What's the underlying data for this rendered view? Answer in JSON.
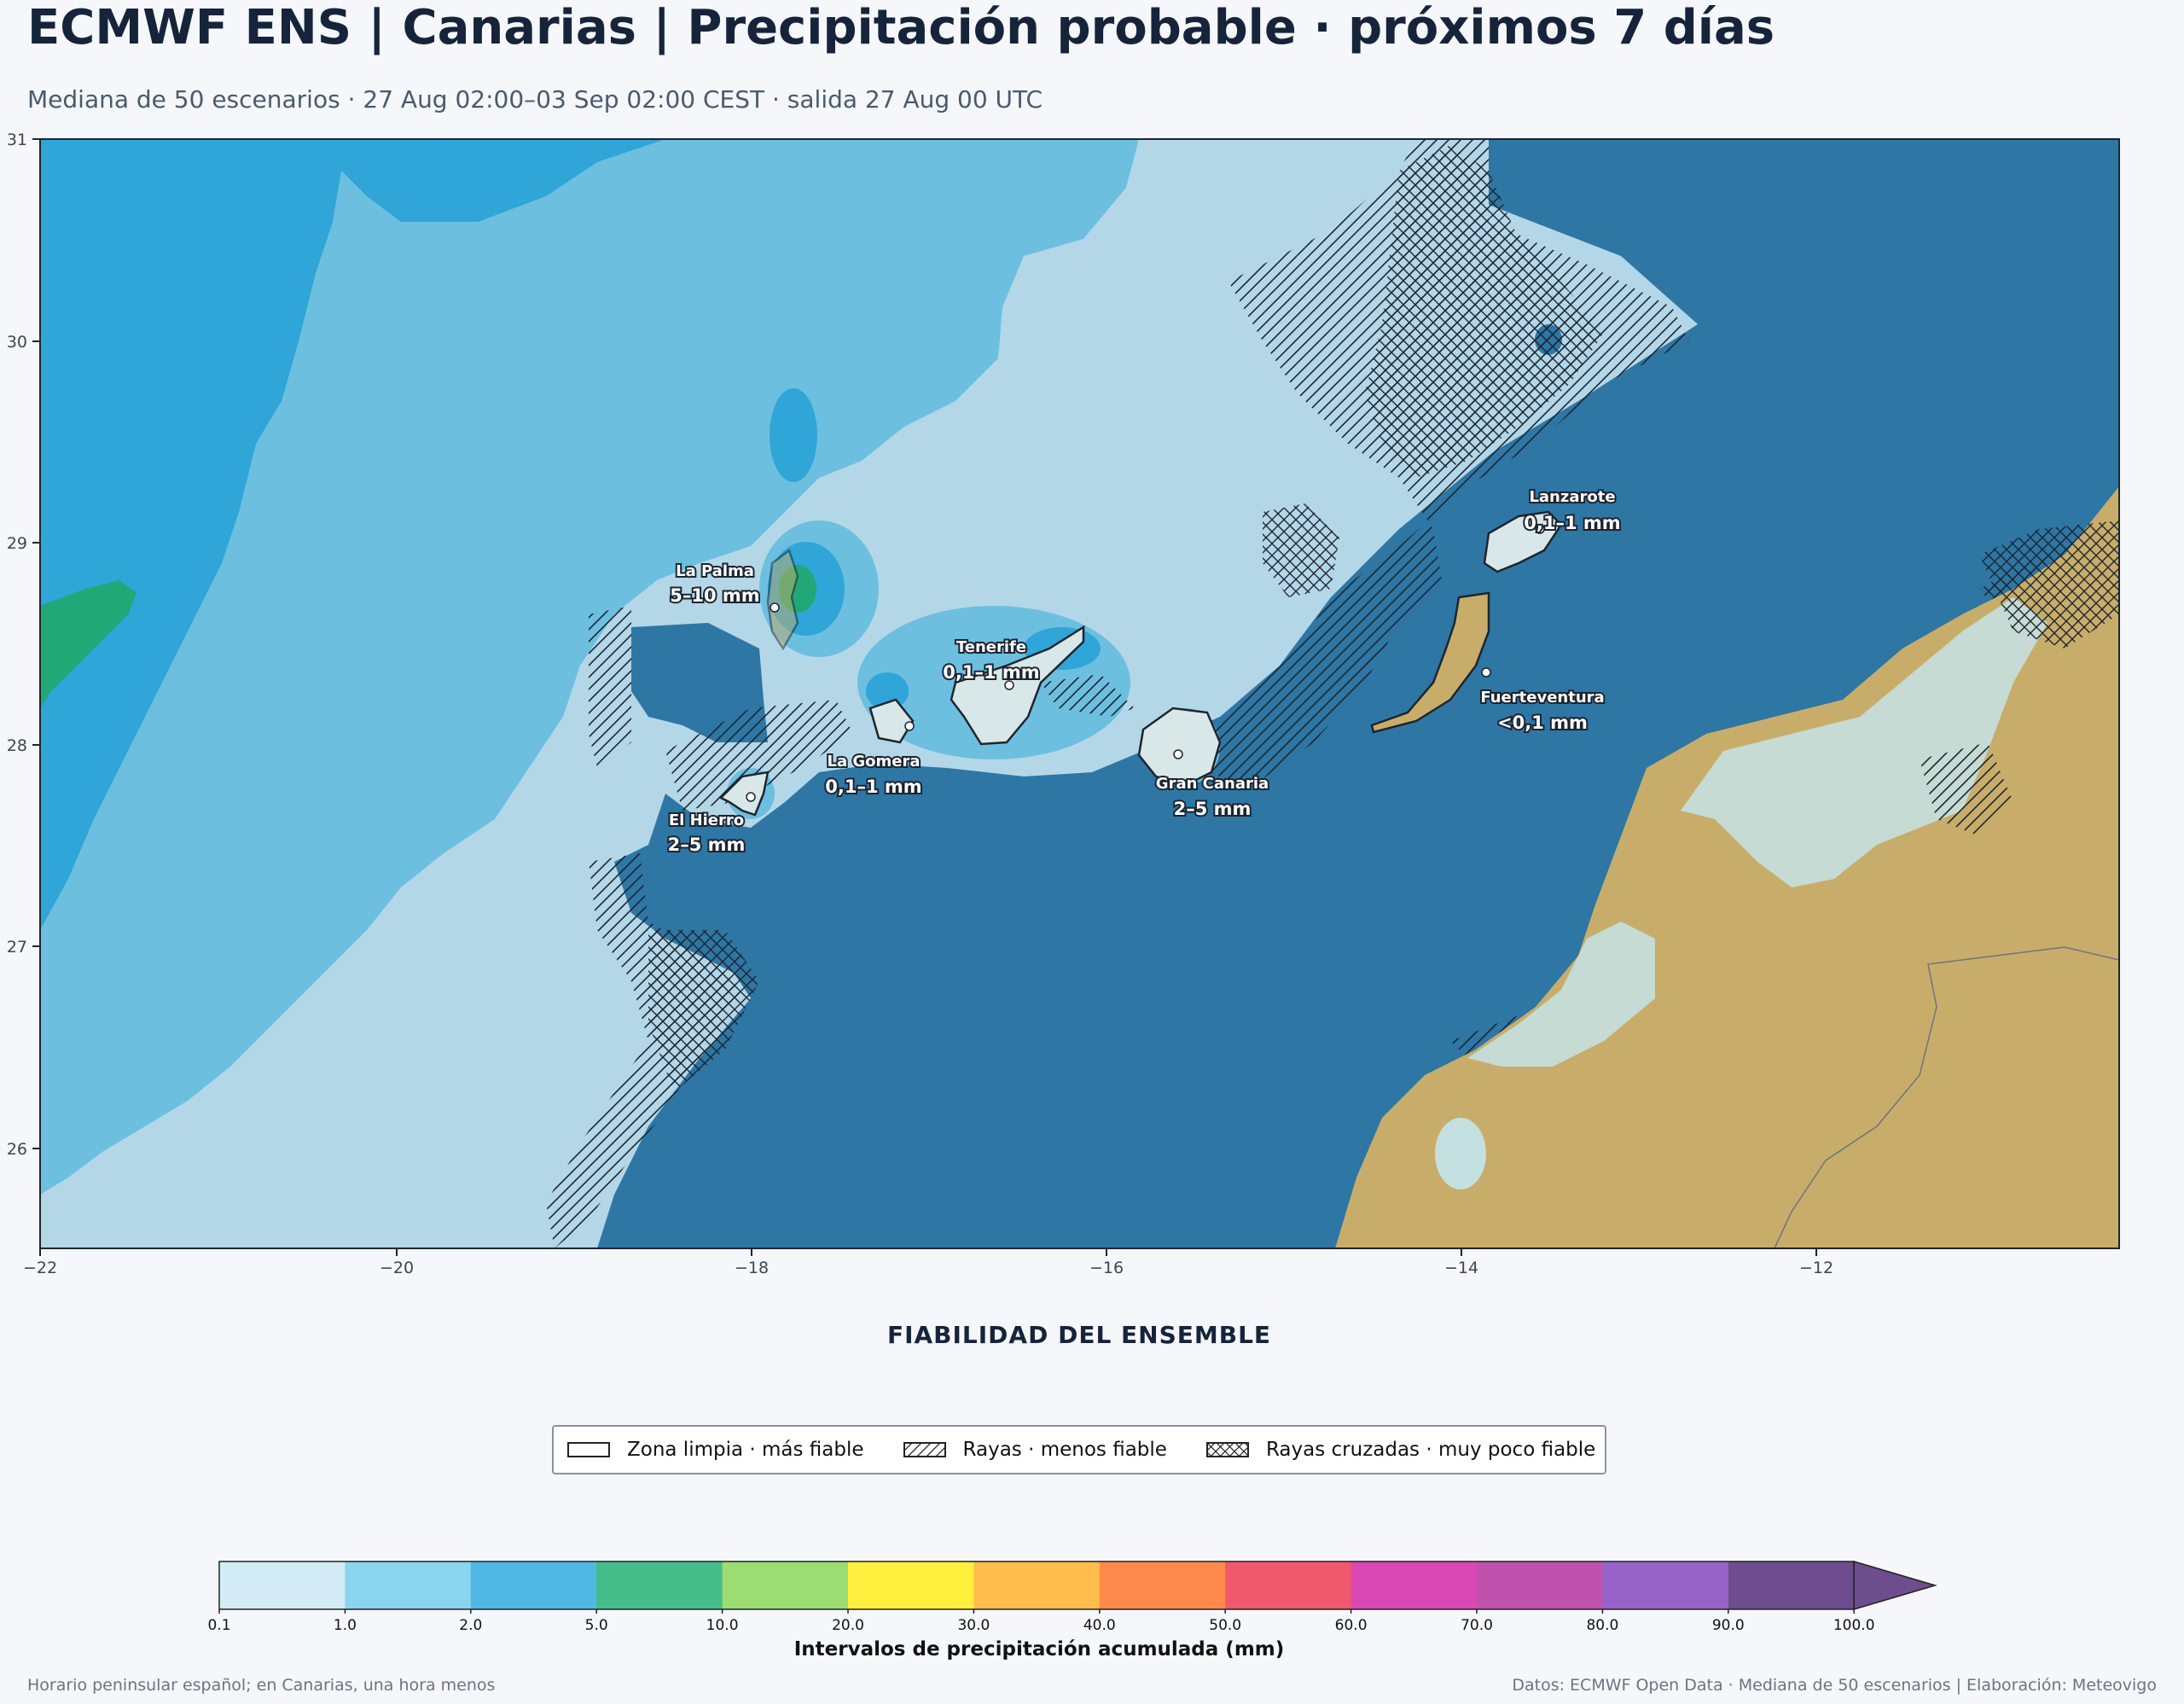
{
  "header": {
    "title": "ECMWF ENS | Canarias | Precipitación probable · próximos 7 días",
    "subtitle": "Mediana de 50 escenarios · 27 Aug 02:00–03 Sep 02:00 CEST · salida 27 Aug 00 UTC"
  },
  "map": {
    "lon_ticks": [
      "−22",
      "−20",
      "−18",
      "−16",
      "−14",
      "−12"
    ],
    "lat_ticks": [
      "31",
      "30",
      "29",
      "28",
      "27",
      "26"
    ],
    "islands": [
      {
        "name": "La Palma",
        "value": "5–10 mm"
      },
      {
        "name": "Tenerife",
        "value": "0,1–1 mm"
      },
      {
        "name": "La Gomera",
        "value": "0,1–1 mm"
      },
      {
        "name": "El Hierro",
        "value": "2–5 mm"
      },
      {
        "name": "Gran Canaria",
        "value": "2–5 mm"
      },
      {
        "name": "Lanzarote",
        "value": "0,1–1 mm"
      },
      {
        "name": "Fuerteventura",
        "value": "<0,1 mm"
      }
    ],
    "colors": {
      "ocean": "#2e76a4",
      "land": "#c8ad6a",
      "class_0_1": "#b4d7e8",
      "class_1_2": "#6dbfdf",
      "class_2_5": "#2fa5d8",
      "class_5_10": "#22a876"
    }
  },
  "reliability": {
    "title": "FIABILIDAD DEL ENSEMBLE",
    "items": [
      {
        "label": "Zona limpia · más fiable",
        "pattern": "none"
      },
      {
        "label": "Rayas · menos fiable",
        "pattern": "hatch"
      },
      {
        "label": "Rayas cruzadas · muy poco fiable",
        "pattern": "crosshatch"
      }
    ]
  },
  "colorbar": {
    "title": "Intervalos de precipitación acumulada (mm)",
    "ticks": [
      "0.1",
      "1.0",
      "2.0",
      "5.0",
      "10.0",
      "20.0",
      "30.0",
      "40.0",
      "50.0",
      "60.0",
      "70.0",
      "80.0",
      "90.0",
      "100.0"
    ],
    "colors": [
      "#d4ecf6",
      "#8ad4ef",
      "#4fb9e3",
      "#45bd8a",
      "#9bdd73",
      "#fff03e",
      "#ffbd4c",
      "#ff8a4c",
      "#f0586b",
      "#da48b5",
      "#bf52ad",
      "#9863c9",
      "#6e4d8f"
    ]
  },
  "footer": {
    "left": "Horario peninsular español; en Canarias, una hora menos",
    "right": "Datos: ECMWF Open Data · Mediana de 50 escenarios | Elaboración: Meteovigo"
  }
}
